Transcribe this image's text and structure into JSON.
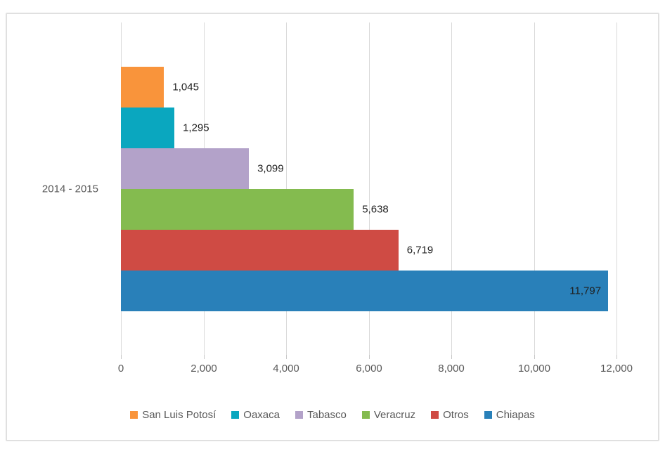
{
  "chart_data": {
    "type": "bar",
    "orientation": "horizontal",
    "category": "2014 - 2015",
    "series": [
      {
        "name": "San Luis Potosí",
        "value": 1045,
        "label": "1,045",
        "color": "#F9943B"
      },
      {
        "name": "Oaxaca",
        "value": 1295,
        "label": "1,295",
        "color": "#0AA7BF"
      },
      {
        "name": "Tabasco",
        "value": 3099,
        "label": "3,099",
        "color": "#B3A2C9"
      },
      {
        "name": "Veracruz",
        "value": 5638,
        "label": "5,638",
        "color": "#84BB4F"
      },
      {
        "name": "Otros",
        "value": 6719,
        "label": "6,719",
        "color": "#CF4B44"
      },
      {
        "name": "Chiapas",
        "value": 11797,
        "label": "11,797",
        "color": "#2980B9"
      }
    ],
    "xlim": [
      0,
      12000
    ],
    "x_ticks": [
      "0",
      "2,000",
      "4,000",
      "6,000",
      "8,000",
      "10,000",
      "12,000"
    ],
    "grid": true,
    "data_labels": true,
    "legend_position": "bottom"
  },
  "colors": {
    "axis_text": "#595959",
    "data_label_text": "#1F1F1F",
    "gridline": "#D9D9D9",
    "frame_border": "#E0E0E0",
    "background": "#FFFFFF"
  }
}
